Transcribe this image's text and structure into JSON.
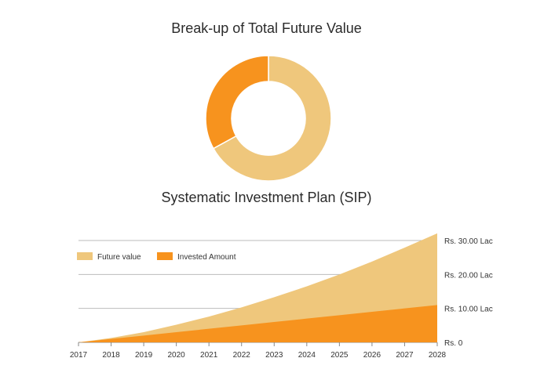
{
  "chart_data": [
    {
      "type": "pie",
      "title": "Break-up of Total Future Value",
      "donut": true,
      "slices": [
        {
          "name": "Future value",
          "value": 67,
          "color": "#EFC77C"
        },
        {
          "name": "Invested Amount",
          "value": 33,
          "color": "#F7931E"
        }
      ]
    },
    {
      "type": "area",
      "title": "Systematic Investment Plan (SIP)",
      "x": [
        "2017",
        "2018",
        "2019",
        "2020",
        "2021",
        "2022",
        "2023",
        "2024",
        "2025",
        "2026",
        "2027",
        "2028"
      ],
      "series": [
        {
          "name": "Future value",
          "color": "#EFC77C",
          "values": [
            0,
            1.3,
            3.0,
            5.2,
            7.6,
            10.3,
            13.3,
            16.5,
            20.0,
            23.8,
            27.9,
            32.1
          ]
        },
        {
          "name": "Invested Amount",
          "color": "#F7931E",
          "values": [
            0,
            1.0,
            2.0,
            3.0,
            4.0,
            5.0,
            6.0,
            7.0,
            8.0,
            9.0,
            10.0,
            11.0
          ]
        }
      ],
      "y_ticks": [
        {
          "value": 0,
          "label": "Rs. 0"
        },
        {
          "value": 10,
          "label": "Rs. 10.00 Lac"
        },
        {
          "value": 20,
          "label": "Rs. 20.00 Lac"
        },
        {
          "value": 30,
          "label": "Rs. 30.00 Lac"
        }
      ],
      "ylim": [
        0,
        30
      ],
      "grid": true,
      "legend_position": "top-left"
    }
  ]
}
